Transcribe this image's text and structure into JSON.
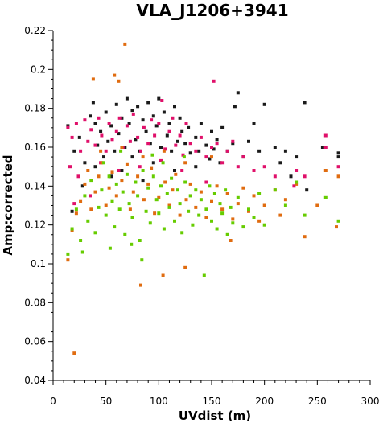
{
  "chart_data": {
    "type": "scatter",
    "title": "VLA_J1206+3941",
    "xlabel": "UVdist (m)",
    "ylabel": "Amp:corrected",
    "xlim": [
      0,
      300
    ],
    "ylim": [
      0.04,
      0.22
    ],
    "xticks": [
      "0",
      "50",
      "100",
      "150",
      "200",
      "250",
      "300"
    ],
    "yticks": [
      "0.04",
      "0.06",
      "0.08",
      "0.1",
      "0.12",
      "0.14",
      "0.16",
      "0.18",
      "0.2",
      "0.22"
    ],
    "grid": false,
    "legend": "none",
    "series": [
      {
        "color": "#1a1a1a",
        "points": [
          [
            14,
            0.171
          ],
          [
            20,
            0.158
          ],
          [
            25,
            0.165
          ],
          [
            30,
            0.152
          ],
          [
            35,
            0.176
          ],
          [
            38,
            0.183
          ],
          [
            40,
            0.172
          ],
          [
            42,
            0.161
          ],
          [
            45,
            0.168
          ],
          [
            48,
            0.155
          ],
          [
            50,
            0.178
          ],
          [
            52,
            0.163
          ],
          [
            55,
            0.171
          ],
          [
            58,
            0.158
          ],
          [
            60,
            0.182
          ],
          [
            62,
            0.167
          ],
          [
            65,
            0.175
          ],
          [
            68,
            0.16
          ],
          [
            70,
            0.185
          ],
          [
            72,
            0.172
          ],
          [
            75,
            0.179
          ],
          [
            78,
            0.164
          ],
          [
            80,
            0.181
          ],
          [
            82,
            0.158
          ],
          [
            85,
            0.174
          ],
          [
            88,
            0.168
          ],
          [
            90,
            0.183
          ],
          [
            92,
            0.162
          ],
          [
            95,
            0.176
          ],
          [
            98,
            0.171
          ],
          [
            100,
            0.185
          ],
          [
            102,
            0.16
          ],
          [
            105,
            0.178
          ],
          [
            108,
            0.166
          ],
          [
            110,
            0.172
          ],
          [
            112,
            0.158
          ],
          [
            115,
            0.181
          ],
          [
            118,
            0.163
          ],
          [
            120,
            0.175
          ],
          [
            122,
            0.168
          ],
          [
            125,
            0.162
          ],
          [
            128,
            0.17
          ],
          [
            130,
            0.157
          ],
          [
            135,
            0.165
          ],
          [
            138,
            0.158
          ],
          [
            140,
            0.172
          ],
          [
            145,
            0.161
          ],
          [
            148,
            0.154
          ],
          [
            150,
            0.168
          ],
          [
            152,
            0.159
          ],
          [
            155,
            0.164
          ],
          [
            158,
            0.152
          ],
          [
            160,
            0.17
          ],
          [
            165,
            0.158
          ],
          [
            170,
            0.162
          ],
          [
            172,
            0.181
          ],
          [
            175,
            0.188
          ],
          [
            180,
            0.155
          ],
          [
            185,
            0.163
          ],
          [
            190,
            0.172
          ],
          [
            195,
            0.158
          ],
          [
            200,
            0.182
          ],
          [
            210,
            0.16
          ],
          [
            215,
            0.152
          ],
          [
            220,
            0.158
          ],
          [
            225,
            0.145
          ],
          [
            230,
            0.155
          ],
          [
            238,
            0.183
          ],
          [
            240,
            0.138
          ],
          [
            255,
            0.16
          ],
          [
            270,
            0.157
          ],
          [
            270,
            0.155
          ],
          [
            40,
            0.15
          ],
          [
            55,
            0.145
          ],
          [
            75,
            0.155
          ],
          [
            95,
            0.152
          ],
          [
            115,
            0.148
          ],
          [
            135,
            0.15
          ],
          [
            18,
            0.127
          ],
          [
            28,
            0.14
          ],
          [
            65,
            0.148
          ],
          [
            85,
            0.143
          ]
        ]
      },
      {
        "color": "#e0106a",
        "points": [
          [
            14,
            0.17
          ],
          [
            18,
            0.165
          ],
          [
            22,
            0.172
          ],
          [
            26,
            0.158
          ],
          [
            30,
            0.174
          ],
          [
            33,
            0.163
          ],
          [
            36,
            0.169
          ],
          [
            40,
            0.161
          ],
          [
            43,
            0.175
          ],
          [
            46,
            0.166
          ],
          [
            50,
            0.158
          ],
          [
            53,
            0.172
          ],
          [
            56,
            0.164
          ],
          [
            60,
            0.168
          ],
          [
            63,
            0.175
          ],
          [
            66,
            0.16
          ],
          [
            70,
            0.171
          ],
          [
            73,
            0.163
          ],
          [
            76,
            0.177
          ],
          [
            80,
            0.165
          ],
          [
            83,
            0.158
          ],
          [
            86,
            0.17
          ],
          [
            90,
            0.162
          ],
          [
            93,
            0.174
          ],
          [
            96,
            0.166
          ],
          [
            100,
            0.172
          ],
          [
            103,
            0.184
          ],
          [
            106,
            0.159
          ],
          [
            110,
            0.168
          ],
          [
            113,
            0.175
          ],
          [
            116,
            0.161
          ],
          [
            120,
            0.166
          ],
          [
            123,
            0.156
          ],
          [
            126,
            0.172
          ],
          [
            130,
            0.162
          ],
          [
            135,
            0.158
          ],
          [
            140,
            0.165
          ],
          [
            145,
            0.155
          ],
          [
            150,
            0.16
          ],
          [
            152,
            0.194
          ],
          [
            155,
            0.162
          ],
          [
            160,
            0.152
          ],
          [
            165,
            0.158
          ],
          [
            170,
            0.163
          ],
          [
            175,
            0.15
          ],
          [
            180,
            0.155
          ],
          [
            190,
            0.148
          ],
          [
            200,
            0.15
          ],
          [
            210,
            0.145
          ],
          [
            228,
            0.14
          ],
          [
            230,
            0.148
          ],
          [
            238,
            0.145
          ],
          [
            258,
            0.166
          ],
          [
            258,
            0.16
          ],
          [
            270,
            0.15
          ],
          [
            16,
            0.15
          ],
          [
            24,
            0.145
          ],
          [
            45,
            0.152
          ],
          [
            62,
            0.148
          ],
          [
            82,
            0.15
          ],
          [
            102,
            0.153
          ],
          [
            122,
            0.148
          ],
          [
            145,
            0.142
          ],
          [
            20,
            0.131
          ],
          [
            35,
            0.135
          ]
        ]
      },
      {
        "color": "#e06c10",
        "points": [
          [
            20,
            0.054
          ],
          [
            14,
            0.102
          ],
          [
            18,
            0.117
          ],
          [
            22,
            0.126
          ],
          [
            26,
            0.132
          ],
          [
            30,
            0.141
          ],
          [
            33,
            0.148
          ],
          [
            36,
            0.128
          ],
          [
            38,
            0.195
          ],
          [
            40,
            0.137
          ],
          [
            43,
            0.145
          ],
          [
            46,
            0.152
          ],
          [
            50,
            0.13
          ],
          [
            53,
            0.139
          ],
          [
            56,
            0.147
          ],
          [
            58,
            0.197
          ],
          [
            60,
            0.135
          ],
          [
            62,
            0.194
          ],
          [
            65,
            0.143
          ],
          [
            68,
            0.213
          ],
          [
            70,
            0.151
          ],
          [
            73,
            0.128
          ],
          [
            76,
            0.137
          ],
          [
            80,
            0.145
          ],
          [
            83,
            0.089
          ],
          [
            86,
            0.133
          ],
          [
            90,
            0.141
          ],
          [
            93,
            0.149
          ],
          [
            96,
            0.126
          ],
          [
            100,
            0.134
          ],
          [
            104,
            0.094
          ],
          [
            106,
            0.142
          ],
          [
            110,
            0.13
          ],
          [
            113,
            0.138
          ],
          [
            116,
            0.146
          ],
          [
            120,
            0.125
          ],
          [
            125,
            0.098
          ],
          [
            126,
            0.133
          ],
          [
            130,
            0.141
          ],
          [
            135,
            0.129
          ],
          [
            140,
            0.137
          ],
          [
            145,
            0.124
          ],
          [
            150,
            0.132
          ],
          [
            155,
            0.14
          ],
          [
            160,
            0.128
          ],
          [
            165,
            0.136
          ],
          [
            168,
            0.112
          ],
          [
            170,
            0.123
          ],
          [
            175,
            0.131
          ],
          [
            180,
            0.139
          ],
          [
            185,
            0.127
          ],
          [
            190,
            0.135
          ],
          [
            195,
            0.122
          ],
          [
            200,
            0.13
          ],
          [
            210,
            0.138
          ],
          [
            215,
            0.125
          ],
          [
            220,
            0.133
          ],
          [
            230,
            0.141
          ],
          [
            238,
            0.114
          ],
          [
            250,
            0.13
          ],
          [
            258,
            0.148
          ],
          [
            268,
            0.119
          ],
          [
            270,
            0.145
          ],
          [
            45,
            0.158
          ],
          [
            65,
            0.16
          ],
          [
            85,
            0.155
          ],
          [
            105,
            0.158
          ],
          [
            125,
            0.152
          ],
          [
            150,
            0.155
          ]
        ]
      },
      {
        "color": "#66cc00",
        "points": [
          [
            14,
            0.105
          ],
          [
            18,
            0.118
          ],
          [
            22,
            0.128
          ],
          [
            26,
            0.112
          ],
          [
            30,
            0.135
          ],
          [
            33,
            0.122
          ],
          [
            36,
            0.143
          ],
          [
            40,
            0.116
          ],
          [
            43,
            0.129
          ],
          [
            46,
            0.138
          ],
          [
            50,
            0.125
          ],
          [
            53,
            0.145
          ],
          [
            56,
            0.132
          ],
          [
            58,
            0.119
          ],
          [
            60,
            0.141
          ],
          [
            63,
            0.128
          ],
          [
            66,
            0.137
          ],
          [
            68,
            0.115
          ],
          [
            70,
            0.146
          ],
          [
            72,
            0.131
          ],
          [
            75,
            0.124
          ],
          [
            78,
            0.142
          ],
          [
            80,
            0.135
          ],
          [
            82,
            0.112
          ],
          [
            85,
            0.148
          ],
          [
            88,
            0.127
          ],
          [
            90,
            0.139
          ],
          [
            92,
            0.121
          ],
          [
            95,
            0.145
          ],
          [
            98,
            0.133
          ],
          [
            100,
            0.126
          ],
          [
            102,
            0.14
          ],
          [
            105,
            0.118
          ],
          [
            108,
            0.136
          ],
          [
            110,
            0.129
          ],
          [
            112,
            0.144
          ],
          [
            115,
            0.122
          ],
          [
            118,
            0.138
          ],
          [
            120,
            0.131
          ],
          [
            122,
            0.116
          ],
          [
            125,
            0.142
          ],
          [
            128,
            0.127
          ],
          [
            130,
            0.135
          ],
          [
            132,
            0.12
          ],
          [
            135,
            0.138
          ],
          [
            138,
            0.125
          ],
          [
            140,
            0.133
          ],
          [
            143,
            0.094
          ],
          [
            145,
            0.128
          ],
          [
            148,
            0.14
          ],
          [
            150,
            0.122
          ],
          [
            153,
            0.136
          ],
          [
            155,
            0.118
          ],
          [
            158,
            0.131
          ],
          [
            160,
            0.126
          ],
          [
            163,
            0.138
          ],
          [
            165,
            0.115
          ],
          [
            168,
            0.129
          ],
          [
            170,
            0.121
          ],
          [
            175,
            0.134
          ],
          [
            180,
            0.119
          ],
          [
            185,
            0.128
          ],
          [
            190,
            0.124
          ],
          [
            195,
            0.136
          ],
          [
            200,
            0.12
          ],
          [
            210,
            0.138
          ],
          [
            220,
            0.13
          ],
          [
            230,
            0.142
          ],
          [
            238,
            0.125
          ],
          [
            258,
            0.134
          ],
          [
            270,
            0.122
          ],
          [
            28,
            0.106
          ],
          [
            48,
            0.152
          ],
          [
            64,
            0.158
          ],
          [
            84,
            0.102
          ],
          [
            104,
            0.152
          ],
          [
            124,
            0.155
          ],
          [
            94,
            0.156
          ],
          [
            74,
            0.11
          ],
          [
            54,
            0.108
          ]
        ]
      }
    ]
  }
}
